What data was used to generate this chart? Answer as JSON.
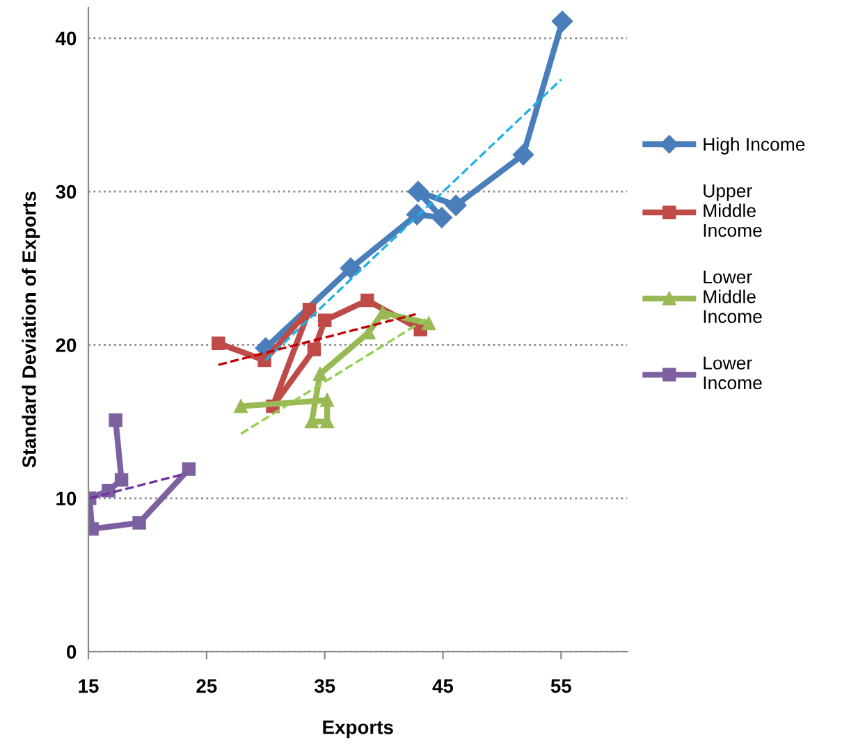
{
  "chart_data": {
    "type": "line",
    "xlabel": "Exports",
    "ylabel": "Standard Deviation of Exports",
    "xlim": [
      15,
      60.6
    ],
    "ylim": [
      0,
      42
    ],
    "xticks": [
      15,
      25,
      35,
      45,
      55
    ],
    "yticks": [
      0,
      10,
      20,
      30,
      40
    ],
    "grid": "y",
    "legend": "right",
    "series": [
      {
        "name": "High Income",
        "color": "#4a7ebb",
        "marker": "diamond",
        "x": [
          30.0,
          37.2,
          42.8,
          44.9,
          42.9,
          46.1,
          51.8,
          55.1
        ],
        "values": [
          19.8,
          25.0,
          28.5,
          28.3,
          30.0,
          29.1,
          32.4,
          41.1
        ]
      },
      {
        "name": "Upper Middle Income",
        "color": "#be4b48",
        "marker": "square",
        "x": [
          26.0,
          29.9,
          33.7,
          30.6,
          34.1,
          35.0,
          38.6,
          43.1
        ],
        "values": [
          20.1,
          19.0,
          22.3,
          16.0,
          19.7,
          21.6,
          22.9,
          21.0
        ]
      },
      {
        "name": "Lower Middle Income",
        "color": "#98b954",
        "marker": "triangle",
        "x": [
          27.9,
          35.2,
          35.2,
          33.9,
          34.6,
          38.7,
          39.9,
          43.8
        ],
        "values": [
          16.0,
          16.4,
          15.0,
          15.0,
          18.1,
          20.8,
          22.1,
          21.4
        ]
      },
      {
        "name": "Lower Income",
        "color": "#7d60a0",
        "marker": "square",
        "x": [
          17.3,
          17.8,
          16.7,
          15.1,
          15.3,
          19.3,
          23.5
        ],
        "values": [
          15.1,
          11.2,
          10.5,
          10.0,
          8.0,
          8.4,
          11.9
        ]
      },
      {
        "color": "#1fb1e6",
        "marker": "none",
        "line_style": "dashed",
        "x": [
          30.0,
          55.0
        ],
        "values": [
          19.0,
          37.3
        ]
      },
      {
        "color": "#c00000",
        "marker": "none",
        "line_style": "dashed",
        "x": [
          26.0,
          42.7
        ],
        "values": [
          18.7,
          22.0
        ]
      },
      {
        "color": "#92d050",
        "marker": "none",
        "line_style": "dashed",
        "x": [
          27.9,
          43.8
        ],
        "values": [
          14.2,
          21.8
        ]
      },
      {
        "color": "#7030a0",
        "marker": "none",
        "line_style": "dashed",
        "x": [
          15.1,
          23.2
        ],
        "values": [
          10.0,
          11.6
        ]
      }
    ]
  }
}
